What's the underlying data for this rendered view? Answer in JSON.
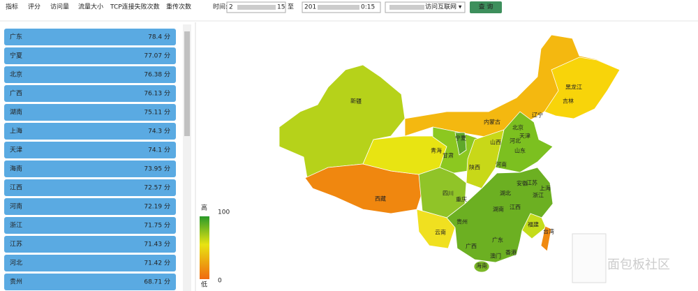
{
  "toolbar": {
    "tabs": [
      "指标",
      "评分",
      "访问量",
      "流量大小",
      "TCP连接失败次数",
      "重传次数"
    ],
    "time_label": "时间:",
    "start_head": "2",
    "start_tail": "15",
    "to_label": "至",
    "end_head": "201",
    "end_tail": "0:15",
    "dropdown": "访问互联网 ▾",
    "button": "查 询"
  },
  "list": {
    "rows": [
      {
        "name": "广东",
        "score": "78.4 分"
      },
      {
        "name": "宁夏",
        "score": "77.07 分"
      },
      {
        "name": "北京",
        "score": "76.38 分"
      },
      {
        "name": "广西",
        "score": "76.13 分"
      },
      {
        "name": "湖南",
        "score": "75.11 分"
      },
      {
        "name": "上海",
        "score": "74.3 分"
      },
      {
        "name": "天津",
        "score": "74.1 分"
      },
      {
        "name": "海南",
        "score": "73.95 分"
      },
      {
        "name": "江西",
        "score": "72.57 分"
      },
      {
        "name": "河南",
        "score": "72.19 分"
      },
      {
        "name": "浙江",
        "score": "71.75 分"
      },
      {
        "name": "江苏",
        "score": "71.43 分"
      },
      {
        "name": "河北",
        "score": "71.42 分"
      },
      {
        "name": "贵州",
        "score": "68.71 分"
      }
    ]
  },
  "map": {
    "labels": [
      "新疆",
      "西藏",
      "青海",
      "甘肃",
      "宁夏",
      "内蒙古",
      "黑龙江",
      "吉林",
      "辽宁",
      "北京",
      "天津",
      "河北",
      "山西",
      "陕西",
      "山东",
      "河南",
      "四川",
      "重庆",
      "湖北",
      "安徽",
      "江苏",
      "上海",
      "浙江",
      "贵州",
      "湖南",
      "江西",
      "云南",
      "福建",
      "台湾",
      "广西",
      "广东",
      "香港",
      "澳门",
      "海南"
    ],
    "legend": {
      "high": "高",
      "low": "低",
      "max": "100",
      "min": "0"
    }
  },
  "watermark": "面包板社区"
}
